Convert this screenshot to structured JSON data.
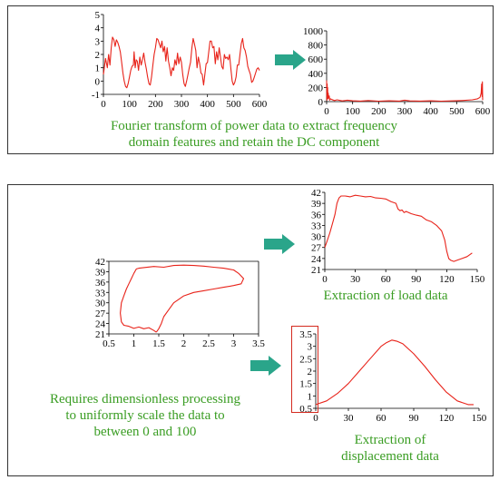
{
  "top_panel": {
    "caption_line1": "Fourier transform of power data to extract frequency",
    "caption_line2": "domain features and retain the DC component"
  },
  "bottom_panel": {
    "load_caption": "Extraction of load data",
    "disp_caption_line1": "Extraction of",
    "disp_caption_line2": "displacement data",
    "note_line1": "Requires dimensionless processing",
    "note_line2": "to uniformly scale the data to",
    "note_line3": "between 0 and 100"
  },
  "colors": {
    "line": "#e8231a",
    "caption": "#3a9d23",
    "arrow": "#2aa58a",
    "highlight_box": "#d42a1f"
  },
  "icons": [
    "right-arrow-icon",
    "right-arrow-icon",
    "right-arrow-icon"
  ],
  "chart_data": [
    {
      "id": "power",
      "type": "line",
      "xlim": [
        0,
        600
      ],
      "ylim": [
        -1,
        5
      ],
      "xticks": [
        "0",
        "100",
        "200",
        "300",
        "400",
        "500",
        "600"
      ],
      "yticks": [
        "-1",
        "0",
        "1",
        "2",
        "3",
        "4",
        "5"
      ],
      "series": [
        {
          "x": [
            0,
            8,
            15,
            20,
            25,
            30,
            35,
            40,
            45,
            50,
            55,
            60,
            65,
            70,
            75,
            80,
            85,
            90,
            95,
            100,
            105,
            110,
            115,
            118,
            122,
            126,
            130,
            135,
            140,
            145,
            150,
            155,
            160,
            165,
            170,
            175,
            180,
            185,
            190,
            195,
            200,
            205,
            210,
            215,
            220,
            225,
            230,
            235,
            240,
            245,
            250,
            255,
            260,
            265,
            270,
            275,
            280,
            285,
            290,
            295,
            300,
            305,
            310,
            315,
            320,
            325,
            330,
            335,
            340,
            345,
            350,
            355,
            360,
            365,
            370,
            375,
            380,
            385,
            390,
            395,
            400,
            405,
            410,
            415,
            420,
            425,
            430,
            435,
            440,
            445,
            450,
            455,
            460,
            465,
            470,
            475,
            480,
            485,
            490,
            495,
            500,
            505,
            510,
            515,
            520,
            525,
            530,
            535,
            540,
            545,
            550,
            555,
            560,
            565,
            570,
            575,
            580,
            585,
            590,
            595,
            600
          ],
          "y": [
            0.5,
            1.7,
            1.0,
            2.0,
            1.2,
            2.5,
            3.3,
            3.1,
            2.6,
            3.1,
            2.9,
            2.6,
            2.2,
            1.4,
            0.6,
            0.0,
            -0.4,
            -0.5,
            -0.2,
            0.3,
            0.8,
            1.1,
            1.2,
            2.2,
            1.0,
            1.6,
            1.5,
            0.8,
            1.8,
            1.2,
            1.6,
            2.1,
            1.4,
            0.9,
            0.3,
            -0.2,
            -0.3,
            0.3,
            1.2,
            2.0,
            2.5,
            3.2,
            3.1,
            2.8,
            2.5,
            3.0,
            2.2,
            2.6,
            1.5,
            2.5,
            1.5,
            1.0,
            0.4,
            1.0,
            0.8,
            1.6,
            1.2,
            2.1,
            1.3,
            1.8,
            1.4,
            0.5,
            -0.2,
            -0.4,
            0.0,
            0.5,
            1.0,
            1.4,
            2.5,
            3.2,
            2.8,
            2.3,
            1.0,
            1.8,
            1.3,
            0.6,
            0.5,
            -0.3,
            0.5,
            1.3,
            1.4,
            2.2,
            3.0,
            3.0,
            2.5,
            2.6,
            1.3,
            2.2,
            1.6,
            2.5,
            1.8,
            1.1,
            0.9,
            2.0,
            1.7,
            1.8,
            1.6,
            2.0,
            0.9,
            0.0,
            -0.3,
            -0.1,
            0.3,
            1.2,
            1.2,
            2.0,
            2.8,
            3.2,
            2.5,
            2.3,
            1.8,
            1.1,
            0.8,
            0.5,
            -0.1,
            0.0,
            0.3,
            0.6,
            0.9,
            1.0,
            0.8
          ]
        }
      ]
    },
    {
      "id": "fft",
      "type": "line",
      "xlim": [
        0,
        600
      ],
      "ylim": [
        0,
        1000
      ],
      "xticks": [
        "0",
        "100",
        "200",
        "300",
        "400",
        "500",
        "600"
      ],
      "yticks": [
        "0",
        "200",
        "400",
        "600",
        "800",
        "1000"
      ],
      "series": [
        {
          "x": [
            0,
            1,
            2,
            3,
            4,
            5,
            6,
            8,
            10,
            12,
            15,
            20,
            30,
            40,
            60,
            80,
            100,
            130,
            160,
            200,
            240,
            280,
            300,
            320,
            360,
            400,
            440,
            480,
            520,
            560,
            580,
            590,
            594,
            596,
            598,
            599,
            600
          ],
          "y": [
            300,
            20,
            250,
            60,
            200,
            40,
            120,
            50,
            80,
            20,
            40,
            30,
            15,
            25,
            10,
            20,
            12,
            8,
            15,
            6,
            12,
            8,
            20,
            10,
            8,
            12,
            7,
            10,
            15,
            25,
            40,
            60,
            120,
            250,
            70,
            280,
            20
          ]
        }
      ]
    },
    {
      "id": "cycle",
      "type": "line",
      "xlim": [
        0.5,
        3.5
      ],
      "ylim": [
        21,
        42
      ],
      "xticks": [
        "0.5",
        "1",
        "1.5",
        "2",
        "2.5",
        "3",
        "3.5"
      ],
      "yticks": [
        "21",
        "24",
        "27",
        "30",
        "33",
        "36",
        "39",
        "42"
      ],
      "series": [
        {
          "x": [
            1.45,
            1.4,
            1.3,
            1.2,
            1.1,
            1.0,
            0.9,
            0.8,
            0.75,
            0.73,
            0.75,
            0.8,
            0.85,
            0.9,
            0.95,
            1.0,
            1.05,
            1.1,
            1.2,
            1.4,
            1.6,
            1.8,
            2.0,
            2.2,
            2.4,
            2.6,
            2.8,
            3.0,
            3.1,
            3.2,
            3.15,
            3.0,
            2.8,
            2.6,
            2.4,
            2.2,
            2.0,
            1.9,
            1.8,
            1.7,
            1.6,
            1.55,
            1.5,
            1.45
          ],
          "y": [
            21.5,
            22.0,
            22.8,
            22.5,
            23.0,
            22.6,
            23.2,
            23.5,
            24.5,
            27,
            30,
            32,
            34,
            35.5,
            37,
            38.5,
            39.8,
            40.0,
            40.2,
            40.5,
            40.3,
            40.8,
            40.9,
            40.8,
            40.6,
            40.3,
            40.0,
            39.5,
            38.5,
            37.0,
            35.5,
            35.0,
            34.5,
            34.0,
            33.5,
            33.0,
            32.0,
            31.0,
            30.0,
            28.0,
            26.0,
            24.0,
            22.5,
            21.5
          ]
        }
      ]
    },
    {
      "id": "load",
      "type": "line",
      "xlim": [
        0,
        150
      ],
      "ylim": [
        21,
        42
      ],
      "xticks": [
        "0",
        "30",
        "60",
        "90",
        "120",
        "150"
      ],
      "yticks": [
        "21",
        "24",
        "27",
        "30",
        "33",
        "36",
        "39",
        "42"
      ],
      "series": [
        {
          "x": [
            0,
            2,
            5,
            8,
            10,
            12,
            14,
            16,
            20,
            25,
            30,
            35,
            40,
            45,
            50,
            55,
            60,
            65,
            70,
            72,
            74,
            76,
            78,
            80,
            85,
            90,
            95,
            100,
            105,
            110,
            115,
            118,
            120,
            122,
            124,
            127,
            130,
            135,
            140,
            145
          ],
          "y": [
            27,
            28.5,
            31,
            34,
            36,
            39,
            40.5,
            41,
            41,
            40.8,
            41.2,
            41.0,
            40.8,
            40.9,
            40.5,
            40.4,
            40.2,
            39.5,
            39,
            37.5,
            37.0,
            37.2,
            36.5,
            36.8,
            36.2,
            35.8,
            35.5,
            34.5,
            34.0,
            33.0,
            31.5,
            29,
            26,
            24,
            23.5,
            23.2,
            23.5,
            24,
            24.5,
            25.5
          ]
        }
      ]
    },
    {
      "id": "displacement",
      "type": "line",
      "xlim": [
        0,
        150
      ],
      "ylim": [
        0.5,
        3.5
      ],
      "xticks": [
        "0",
        "30",
        "60",
        "90",
        "120",
        "150"
      ],
      "yticks": [
        "0.5",
        "1",
        "1.5",
        "2",
        "2.5",
        "3",
        "3.5"
      ],
      "series": [
        {
          "x": [
            0,
            10,
            20,
            30,
            40,
            50,
            60,
            65,
            70,
            75,
            80,
            90,
            100,
            110,
            120,
            130,
            140,
            145
          ],
          "y": [
            0.65,
            0.8,
            1.1,
            1.5,
            2.0,
            2.5,
            3.0,
            3.15,
            3.25,
            3.2,
            3.1,
            2.7,
            2.2,
            1.65,
            1.15,
            0.8,
            0.65,
            0.65
          ]
        }
      ]
    }
  ]
}
